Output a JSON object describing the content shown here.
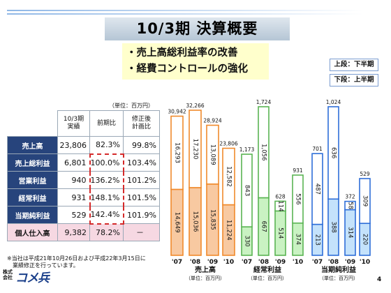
{
  "title": "10/3期 決算概要",
  "highlights": [
    "・売上高総利益率の改善",
    "・経費コントロールの強化"
  ],
  "legend": {
    "upper": "上段：下半期",
    "lower": "下段：上半期"
  },
  "table": {
    "unit": "（単位：百万円）",
    "columns": [
      "10/3期\n実績",
      "前期比",
      "修正後\n計画比"
    ],
    "rows": [
      {
        "label": "売上高",
        "values": [
          "23,806",
          "82.3%",
          "99.8%"
        ]
      },
      {
        "label": "売上総利益",
        "values": [
          "6,801",
          "100.0%",
          "103.4%"
        ]
      },
      {
        "label": "営業利益",
        "values": [
          "940",
          "136.2%",
          "101.2%"
        ]
      },
      {
        "label": "経常利益",
        "values": [
          "931",
          "148.1%",
          "101.5%"
        ]
      },
      {
        "label": "当期純利益",
        "values": [
          "529",
          "142.4%",
          "101.9%"
        ]
      },
      {
        "label": "個人仕入高",
        "values": [
          "9,382",
          "78.2%",
          "－"
        ]
      }
    ]
  },
  "footnote": [
    "※当社は平成21年10月26日および平成22年3月15日に",
    "　業績修正を行っています。"
  ],
  "logo": {
    "small": [
      "株式",
      "会社"
    ],
    "name": "コメ兵"
  },
  "page_number": "4",
  "colors": {
    "header_row_bg": "#27447c",
    "sales_upper": "#ffffff",
    "sales_lower": "#f8c9a1",
    "sales_border": "#f08a2c",
    "ordinary_upper": "#ffffff",
    "ordinary_lower": "#c9f2c2",
    "ordinary_border": "#5ab453",
    "net_upper": "#ffffff",
    "net_lower": "#c4e2fb",
    "net_border": "#2e6ed8"
  },
  "chart_data": [
    {
      "type": "bar",
      "stacked": true,
      "title": "売上高",
      "unit": "（単位：百万円）",
      "categories": [
        "'07",
        "'08",
        "'09",
        "'10"
      ],
      "totals": [
        30942,
        32266,
        28924,
        23806
      ],
      "totals_text": [
        "30,942",
        "32,266",
        "28,924",
        "23,806"
      ],
      "series": [
        {
          "name": "上段：下半期",
          "values": [
            16293,
            17230,
            13089,
            12582
          ],
          "labels": [
            "16,293",
            "17,230",
            "13,089",
            "12,582"
          ]
        },
        {
          "name": "下段：上半期",
          "values": [
            14649,
            15036,
            15835,
            11224
          ],
          "labels": [
            "14,649",
            "15,036",
            "15,835",
            "11,224"
          ]
        }
      ]
    },
    {
      "type": "bar",
      "stacked": true,
      "title": "経常利益",
      "unit": "（単位：百万円）",
      "categories": [
        "'07",
        "'08",
        "'09",
        "'10"
      ],
      "totals": [
        1173,
        1724,
        628,
        931
      ],
      "totals_text": [
        "1,173",
        "1,724",
        "628",
        "931"
      ],
      "series": [
        {
          "name": "上段：下半期",
          "values": [
            843,
            1056,
            114,
            556
          ],
          "labels": [
            "843",
            "1,056",
            "114",
            "556"
          ]
        },
        {
          "name": "下段：上半期",
          "values": [
            330,
            667,
            514,
            374
          ],
          "labels": [
            "330",
            "667",
            "514",
            "374"
          ]
        }
      ]
    },
    {
      "type": "bar",
      "stacked": true,
      "title": "当期純利益",
      "unit": "（単位：百万円）",
      "categories": [
        "'07",
        "'08",
        "'09",
        "'10"
      ],
      "totals": [
        701,
        1024,
        372,
        529
      ],
      "totals_text": [
        "701",
        "1,024",
        "372",
        "529"
      ],
      "series": [
        {
          "name": "上段：下半期",
          "values": [
            487,
            636,
            58,
            309
          ],
          "labels": [
            "487",
            "636",
            "58",
            "309"
          ]
        },
        {
          "name": "下段：上半期",
          "values": [
            213,
            388,
            314,
            220
          ],
          "labels": [
            "213",
            "388",
            "314",
            "220"
          ]
        }
      ]
    }
  ]
}
